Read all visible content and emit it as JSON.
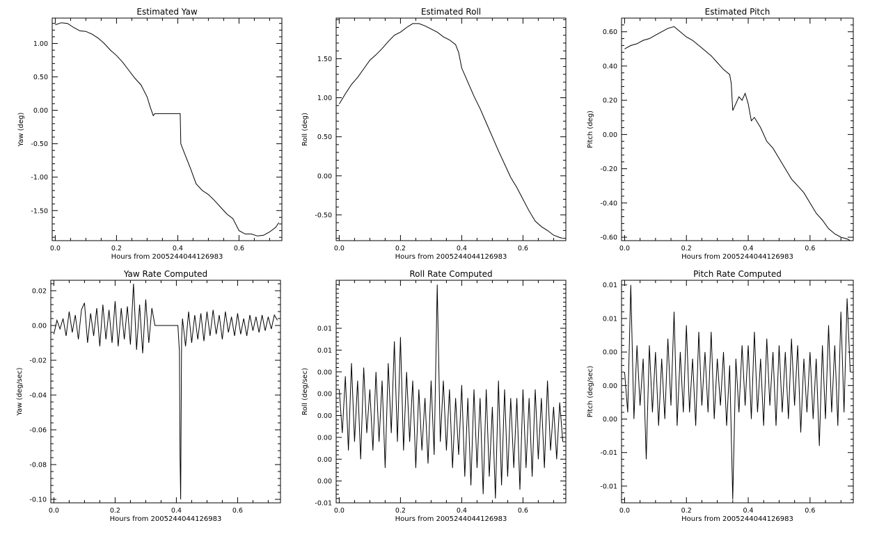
{
  "chart_data": [
    {
      "type": "line",
      "title": "Estimated Yaw",
      "xlabel": "Hours from 2005244044126983",
      "ylabel": "Yaw (deg)",
      "xlim": [
        -0.01,
        0.74
      ],
      "ylim": [
        -1.95,
        1.38
      ],
      "xticks": [
        0.0,
        0.2,
        0.4,
        0.6
      ],
      "xtick_labels": [
        "0.0",
        "0.2",
        "0.4",
        "0.6"
      ],
      "yticks": [
        1.0,
        0.5,
        0.0,
        -0.5,
        -1.0,
        -1.5
      ],
      "ytick_labels": [
        "1.00",
        "0.50",
        "0.00",
        "-0.50",
        "-1.00",
        "-1.50"
      ],
      "series": [
        {
          "x": [
            0.0,
            0.02,
            0.04,
            0.06,
            0.08,
            0.1,
            0.12,
            0.14,
            0.16,
            0.18,
            0.2,
            0.22,
            0.24,
            0.26,
            0.28,
            0.3,
            0.31,
            0.32,
            0.325,
            0.34,
            0.36,
            0.38,
            0.4,
            0.408,
            0.41,
            0.42,
            0.44,
            0.46,
            0.48,
            0.5,
            0.52,
            0.54,
            0.56,
            0.58,
            0.6,
            0.62,
            0.64,
            0.66,
            0.68,
            0.7,
            0.72,
            0.73
          ],
          "y": [
            1.28,
            1.31,
            1.3,
            1.24,
            1.19,
            1.18,
            1.14,
            1.08,
            1.0,
            0.9,
            0.82,
            0.72,
            0.6,
            0.48,
            0.38,
            0.2,
            0.05,
            -0.08,
            -0.05,
            -0.05,
            -0.05,
            -0.05,
            -0.05,
            -0.05,
            -0.5,
            -0.62,
            -0.85,
            -1.1,
            -1.2,
            -1.26,
            -1.35,
            -1.45,
            -1.55,
            -1.62,
            -1.8,
            -1.85,
            -1.85,
            -1.88,
            -1.87,
            -1.82,
            -1.75,
            -1.68
          ]
        }
      ]
    },
    {
      "type": "line",
      "title": "Estimated Roll",
      "xlabel": "Hours from 2005244044126983",
      "ylabel": "Roll (deg)",
      "xlim": [
        -0.01,
        0.74
      ],
      "ylim": [
        -0.83,
        2.02
      ],
      "xticks": [
        0.0,
        0.2,
        0.4,
        0.6
      ],
      "xtick_labels": [
        "0.0",
        "0.2",
        "0.4",
        "0.6"
      ],
      "yticks": [
        1.5,
        1.0,
        0.5,
        0.0,
        -0.5
      ],
      "ytick_labels": [
        "1.50",
        "1.00",
        "0.50",
        "0.00",
        "-0.50"
      ],
      "series": [
        {
          "x": [
            0.0,
            0.02,
            0.04,
            0.06,
            0.08,
            0.1,
            0.12,
            0.14,
            0.16,
            0.18,
            0.2,
            0.22,
            0.24,
            0.26,
            0.28,
            0.3,
            0.32,
            0.34,
            0.36,
            0.38,
            0.39,
            0.4,
            0.42,
            0.44,
            0.46,
            0.48,
            0.5,
            0.52,
            0.54,
            0.56,
            0.58,
            0.6,
            0.62,
            0.64,
            0.66,
            0.68,
            0.7,
            0.72,
            0.73
          ],
          "y": [
            0.92,
            1.05,
            1.17,
            1.26,
            1.37,
            1.48,
            1.55,
            1.63,
            1.72,
            1.8,
            1.84,
            1.9,
            1.95,
            1.95,
            1.92,
            1.88,
            1.84,
            1.78,
            1.74,
            1.68,
            1.58,
            1.38,
            1.2,
            1.02,
            0.86,
            0.68,
            0.5,
            0.32,
            0.15,
            -0.02,
            -0.15,
            -0.3,
            -0.45,
            -0.58,
            -0.65,
            -0.7,
            -0.76,
            -0.79,
            -0.8
          ]
        }
      ]
    },
    {
      "type": "line",
      "title": "Estimated Pitch",
      "xlabel": "Hours from 2005244044126983",
      "ylabel": "Pitch (deg)",
      "xlim": [
        -0.01,
        0.74
      ],
      "ylim": [
        -0.62,
        0.68
      ],
      "xticks": [
        0.0,
        0.2,
        0.4,
        0.6
      ],
      "xtick_labels": [
        "0.0",
        "0.2",
        "0.4",
        "0.6"
      ],
      "yticks": [
        0.6,
        0.4,
        0.2,
        0.0,
        -0.2,
        -0.4,
        -0.6
      ],
      "ytick_labels": [
        "0.60",
        "0.40",
        "0.20",
        "0.00",
        "-0.20",
        "-0.40",
        "-0.60"
      ],
      "series": [
        {
          "x": [
            0.0,
            0.02,
            0.04,
            0.06,
            0.08,
            0.1,
            0.12,
            0.14,
            0.16,
            0.18,
            0.2,
            0.22,
            0.24,
            0.26,
            0.28,
            0.3,
            0.32,
            0.34,
            0.345,
            0.35,
            0.36,
            0.37,
            0.38,
            0.39,
            0.4,
            0.41,
            0.42,
            0.44,
            0.46,
            0.48,
            0.5,
            0.52,
            0.54,
            0.56,
            0.58,
            0.6,
            0.62,
            0.64,
            0.66,
            0.68,
            0.7,
            0.72,
            0.73
          ],
          "y": [
            0.5,
            0.52,
            0.53,
            0.55,
            0.56,
            0.58,
            0.6,
            0.62,
            0.63,
            0.6,
            0.57,
            0.55,
            0.52,
            0.49,
            0.46,
            0.42,
            0.38,
            0.35,
            0.3,
            0.14,
            0.18,
            0.22,
            0.2,
            0.24,
            0.18,
            0.08,
            0.1,
            0.04,
            -0.04,
            -0.08,
            -0.14,
            -0.2,
            -0.26,
            -0.3,
            -0.34,
            -0.4,
            -0.46,
            -0.5,
            -0.55,
            -0.58,
            -0.6,
            -0.61,
            -0.62
          ]
        }
      ]
    },
    {
      "type": "line",
      "title": "Yaw Rate Computed",
      "xlabel": "Hours from 2005244044126983",
      "ylabel": "Yaw (deg/sec)",
      "xlim": [
        -0.01,
        0.74
      ],
      "ylim": [
        -0.102,
        0.026
      ],
      "xticks": [
        0.0,
        0.2,
        0.4,
        0.6
      ],
      "xtick_labels": [
        "0.0",
        "0.2",
        "0.4",
        "0.6"
      ],
      "yticks": [
        0.02,
        0.0,
        -0.02,
        -0.04,
        -0.06,
        -0.08,
        -0.1
      ],
      "ytick_labels": [
        "0.02",
        "0.00",
        "-0.02",
        "-0.04",
        "-0.06",
        "-0.08",
        "-0.10"
      ],
      "series": [
        {
          "x": [
            0.0,
            0.01,
            0.02,
            0.03,
            0.04,
            0.05,
            0.06,
            0.07,
            0.08,
            0.09,
            0.1,
            0.11,
            0.12,
            0.13,
            0.14,
            0.15,
            0.16,
            0.17,
            0.18,
            0.19,
            0.2,
            0.21,
            0.22,
            0.23,
            0.24,
            0.25,
            0.26,
            0.27,
            0.28,
            0.29,
            0.3,
            0.31,
            0.32,
            0.33,
            0.36,
            0.38,
            0.4,
            0.405,
            0.41,
            0.412,
            0.414,
            0.417,
            0.42,
            0.43,
            0.44,
            0.45,
            0.46,
            0.47,
            0.48,
            0.49,
            0.5,
            0.51,
            0.52,
            0.53,
            0.54,
            0.55,
            0.56,
            0.57,
            0.58,
            0.59,
            0.6,
            0.61,
            0.62,
            0.63,
            0.64,
            0.65,
            0.66,
            0.67,
            0.68,
            0.69,
            0.7,
            0.71,
            0.72,
            0.73
          ],
          "y": [
            -0.005,
            0.003,
            -0.002,
            0.004,
            -0.006,
            0.008,
            -0.004,
            0.006,
            -0.008,
            0.009,
            0.013,
            -0.01,
            0.007,
            -0.006,
            0.01,
            -0.012,
            0.012,
            -0.008,
            0.009,
            -0.01,
            0.014,
            -0.012,
            0.01,
            -0.008,
            0.011,
            -0.011,
            0.024,
            -0.014,
            0.012,
            -0.016,
            0.015,
            -0.01,
            0.01,
            0.0,
            0.0,
            0.0,
            0.0,
            0.0,
            -0.015,
            -0.076,
            -0.1,
            -0.008,
            0.004,
            -0.012,
            0.008,
            -0.01,
            0.006,
            -0.008,
            0.007,
            -0.009,
            0.008,
            -0.006,
            0.009,
            -0.005,
            0.006,
            -0.008,
            0.008,
            -0.004,
            0.005,
            -0.006,
            0.007,
            -0.005,
            0.004,
            -0.006,
            0.006,
            -0.003,
            0.005,
            -0.004,
            0.006,
            -0.003,
            0.005,
            -0.002,
            0.006,
            0.003
          ]
        }
      ]
    },
    {
      "type": "line",
      "title": "Roll Rate Computed",
      "xlabel": "Hours from 2005244044126983",
      "ylabel": "Roll (deg/sec)",
      "xlim": [
        -0.01,
        0.74
      ],
      "ylim": [
        -0.01,
        0.0155
      ],
      "xticks": [
        0.0,
        0.2,
        0.4,
        0.6
      ],
      "xtick_labels": [
        "0.0",
        "0.2",
        "0.4",
        "0.6"
      ],
      "yticks": [
        0.01,
        0.0075,
        0.005,
        0.0025,
        0.0,
        -0.0025,
        -0.005,
        -0.0075,
        -0.01
      ],
      "ytick_labels": [
        "0.01",
        "0.01",
        "0.00",
        "0.00",
        "0.00",
        "0.00",
        "0.00",
        "0.00",
        "-0.01"
      ],
      "series": [
        {
          "x": [
            0.0,
            0.01,
            0.02,
            0.03,
            0.04,
            0.05,
            0.06,
            0.07,
            0.08,
            0.09,
            0.1,
            0.11,
            0.12,
            0.13,
            0.14,
            0.15,
            0.16,
            0.17,
            0.18,
            0.19,
            0.2,
            0.21,
            0.22,
            0.23,
            0.24,
            0.25,
            0.26,
            0.27,
            0.28,
            0.29,
            0.3,
            0.31,
            0.32,
            0.33,
            0.34,
            0.35,
            0.36,
            0.37,
            0.38,
            0.39,
            0.4,
            0.41,
            0.42,
            0.43,
            0.44,
            0.45,
            0.46,
            0.47,
            0.48,
            0.49,
            0.5,
            0.51,
            0.52,
            0.53,
            0.54,
            0.55,
            0.56,
            0.57,
            0.58,
            0.59,
            0.6,
            0.61,
            0.62,
            0.63,
            0.64,
            0.65,
            0.66,
            0.67,
            0.68,
            0.69,
            0.7,
            0.71,
            0.72,
            0.73
          ],
          "y": [
            0.003,
            -0.002,
            0.0045,
            -0.004,
            0.006,
            -0.003,
            0.004,
            -0.005,
            0.0055,
            -0.002,
            0.003,
            -0.004,
            0.005,
            -0.003,
            0.004,
            -0.006,
            0.006,
            -0.002,
            0.0085,
            -0.003,
            0.009,
            -0.004,
            0.005,
            -0.003,
            0.004,
            -0.006,
            0.003,
            -0.004,
            0.002,
            -0.0055,
            0.004,
            -0.0045,
            0.015,
            -0.003,
            0.004,
            -0.004,
            0.003,
            -0.006,
            0.002,
            -0.0045,
            0.0035,
            -0.007,
            0.002,
            -0.008,
            0.003,
            -0.006,
            0.002,
            -0.009,
            0.003,
            -0.007,
            0.001,
            -0.0095,
            0.004,
            -0.008,
            0.003,
            -0.007,
            0.002,
            -0.006,
            0.002,
            -0.0085,
            0.003,
            -0.006,
            0.002,
            -0.007,
            0.003,
            -0.005,
            0.002,
            -0.006,
            0.004,
            -0.004,
            0.001,
            -0.005,
            0.0015,
            -0.003
          ]
        }
      ]
    },
    {
      "type": "line",
      "title": "Pitch Rate Computed",
      "xlabel": "Hours from 2005244044126983",
      "ylabel": "Pitch (deg/sec)",
      "xlim": [
        -0.01,
        0.74
      ],
      "ylim": [
        -0.0175,
        0.0157
      ],
      "xticks": [
        0.0,
        0.2,
        0.4,
        0.6
      ],
      "xtick_labels": [
        "0.0",
        "0.2",
        "0.4",
        "0.6"
      ],
      "yticks": [
        0.015,
        0.01,
        0.005,
        0.0,
        -0.005,
        -0.01,
        -0.015
      ],
      "ytick_labels": [
        "0.01",
        "0.01",
        "0.00",
        "0.00",
        "0.00",
        "-0.01",
        "-0.01"
      ],
      "series": [
        {
          "x": [
            0.0,
            0.01,
            0.02,
            0.03,
            0.04,
            0.05,
            0.06,
            0.07,
            0.08,
            0.09,
            0.1,
            0.11,
            0.12,
            0.13,
            0.14,
            0.15,
            0.16,
            0.17,
            0.18,
            0.19,
            0.2,
            0.21,
            0.22,
            0.23,
            0.24,
            0.25,
            0.26,
            0.27,
            0.28,
            0.29,
            0.3,
            0.31,
            0.32,
            0.33,
            0.34,
            0.35,
            0.36,
            0.37,
            0.38,
            0.39,
            0.4,
            0.41,
            0.42,
            0.43,
            0.44,
            0.45,
            0.46,
            0.47,
            0.48,
            0.49,
            0.5,
            0.51,
            0.52,
            0.53,
            0.54,
            0.55,
            0.56,
            0.57,
            0.58,
            0.59,
            0.6,
            0.61,
            0.62,
            0.63,
            0.64,
            0.65,
            0.66,
            0.67,
            0.68,
            0.69,
            0.7,
            0.71,
            0.72,
            0.73
          ],
          "y": [
            0.002,
            -0.004,
            0.015,
            -0.005,
            0.006,
            -0.003,
            0.004,
            -0.011,
            0.006,
            -0.004,
            0.005,
            -0.006,
            0.004,
            -0.005,
            0.007,
            -0.003,
            0.011,
            -0.006,
            0.005,
            -0.004,
            0.009,
            -0.004,
            0.004,
            -0.006,
            0.008,
            -0.003,
            0.005,
            -0.004,
            0.008,
            -0.005,
            0.004,
            -0.003,
            0.005,
            -0.006,
            0.003,
            -0.017,
            0.004,
            -0.004,
            0.006,
            -0.003,
            0.006,
            -0.005,
            0.008,
            -0.004,
            0.004,
            -0.006,
            0.007,
            -0.003,
            0.005,
            -0.006,
            0.006,
            -0.004,
            0.005,
            -0.005,
            0.007,
            -0.003,
            0.006,
            -0.007,
            0.004,
            -0.004,
            0.005,
            -0.005,
            0.004,
            -0.009,
            0.006,
            -0.005,
            0.009,
            -0.004,
            0.006,
            -0.006,
            0.011,
            -0.004,
            0.013,
            0.002
          ]
        }
      ]
    }
  ]
}
